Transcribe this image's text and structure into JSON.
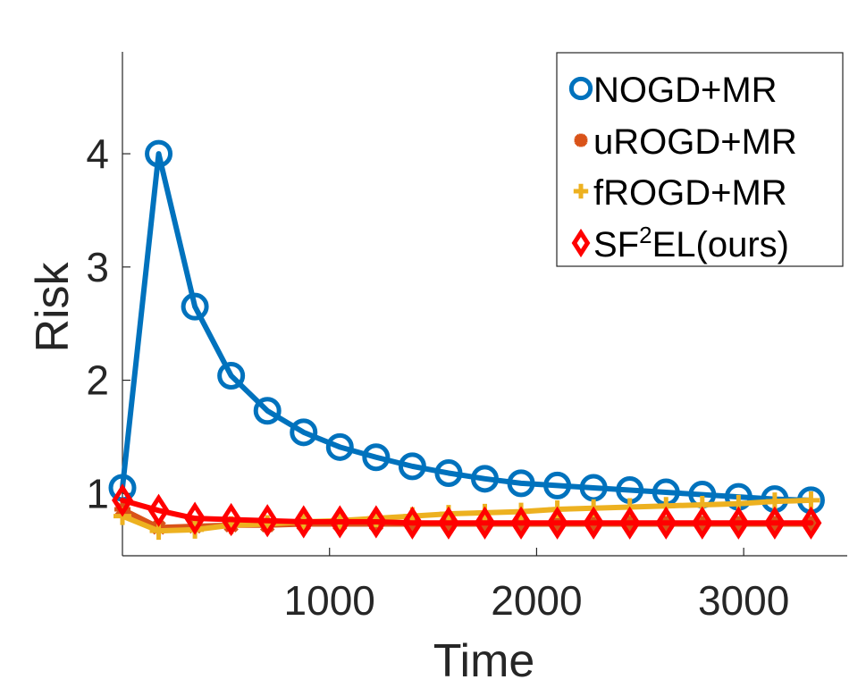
{
  "chart_data": {
    "type": "line",
    "title": "",
    "xlabel": "Time",
    "ylabel": "Risk",
    "xlim": [
      0,
      3500
    ],
    "ylim": [
      0.45,
      4.9
    ],
    "xticks": [
      1000,
      2000,
      3000
    ],
    "xtick_labels": [
      "1000",
      "2000",
      "3000"
    ],
    "yticks": [
      1,
      2,
      3,
      4
    ],
    "ytick_labels": [
      "1",
      "2",
      "3",
      "4"
    ],
    "grid": false,
    "legend_position": "top-right",
    "x": [
      0,
      175,
      350,
      525,
      700,
      875,
      1050,
      1225,
      1400,
      1575,
      1750,
      1925,
      2100,
      2275,
      2450,
      2625,
      2800,
      2975,
      3150,
      3325
    ],
    "series": [
      {
        "name": "NOGD+MR",
        "color": "#0072BD",
        "marker": "circle",
        "values": [
          1.05,
          4.0,
          2.65,
          2.04,
          1.73,
          1.54,
          1.41,
          1.32,
          1.24,
          1.18,
          1.13,
          1.09,
          1.07,
          1.05,
          1.03,
          1.01,
          0.99,
          0.97,
          0.95,
          0.94
        ]
      },
      {
        "name": "uROGD+MR",
        "color": "#D95319",
        "marker": "asterisk",
        "values": [
          0.86,
          0.7,
          0.71,
          0.72,
          0.72,
          0.73,
          0.73,
          0.73,
          0.73,
          0.73,
          0.73,
          0.73,
          0.73,
          0.73,
          0.73,
          0.73,
          0.73,
          0.73,
          0.73,
          0.73
        ]
      },
      {
        "name": "fROGD+MR",
        "color": "#EDB120",
        "marker": "plus",
        "values": [
          0.8,
          0.67,
          0.68,
          0.72,
          0.73,
          0.75,
          0.76,
          0.78,
          0.8,
          0.82,
          0.83,
          0.84,
          0.86,
          0.87,
          0.88,
          0.89,
          0.9,
          0.91,
          0.93,
          0.94
        ]
      },
      {
        "name": "SF²EL(ours)",
        "label_main": "SF",
        "label_sup": "2",
        "label_rest": "EL(ours)",
        "color": "#FF0000",
        "marker": "diamond",
        "values": [
          0.94,
          0.85,
          0.78,
          0.77,
          0.76,
          0.75,
          0.75,
          0.75,
          0.74,
          0.74,
          0.74,
          0.74,
          0.74,
          0.74,
          0.74,
          0.74,
          0.74,
          0.74,
          0.74,
          0.74
        ]
      }
    ]
  }
}
